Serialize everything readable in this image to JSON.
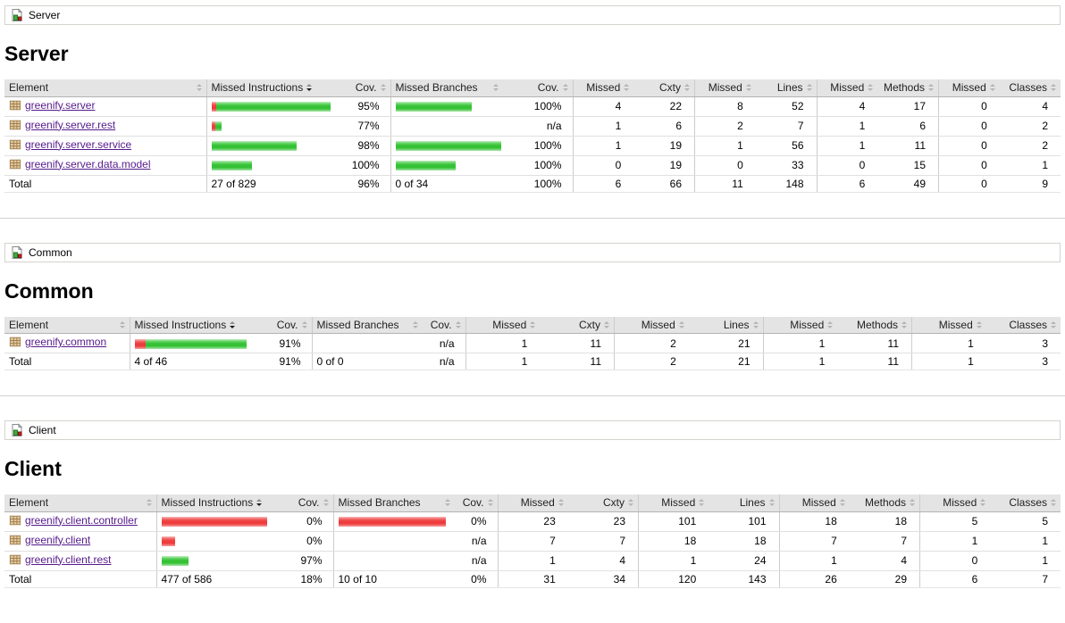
{
  "colors": {
    "bar_green": "#35c135",
    "bar_red": "#ee3c3c",
    "link_purple": "#551a8b",
    "header_bg": "#e4e4e4"
  },
  "icons": {
    "breadcrumb_icon": "coverage-report-icon",
    "package_icon": "java-package-icon",
    "sort_unsorted": "sort-toggle-icon",
    "sort_active": "sort-descending-icon"
  },
  "columns": [
    {
      "label": "Element",
      "sorted": false
    },
    {
      "label": "Missed Instructions",
      "sorted": true
    },
    {
      "label": "Cov.",
      "sorted": false
    },
    {
      "label": "Missed Branches",
      "sorted": false
    },
    {
      "label": "Cov.",
      "sorted": false
    },
    {
      "label": "Missed",
      "sorted": false
    },
    {
      "label": "Cxty",
      "sorted": false
    },
    {
      "label": "Missed",
      "sorted": false
    },
    {
      "label": "Lines",
      "sorted": false
    },
    {
      "label": "Missed",
      "sorted": false
    },
    {
      "label": "Methods",
      "sorted": false
    },
    {
      "label": "Missed",
      "sorted": false
    },
    {
      "label": "Classes",
      "sorted": false
    }
  ],
  "sections": [
    {
      "breadcrumb": "Server",
      "title": "Server",
      "rows": [
        {
          "element": "greenify.server",
          "instr_bar": {
            "red": 5,
            "green": 128
          },
          "instr_cov": "95%",
          "branch_bar": {
            "red": 0,
            "green": 85
          },
          "branch_cov": "100%",
          "cells": [
            "4",
            "22",
            "8",
            "52",
            "4",
            "17",
            "0",
            "4"
          ]
        },
        {
          "element": "greenify.server.rest",
          "instr_bar": {
            "red": 4,
            "green": 7
          },
          "instr_cov": "77%",
          "branch_bar": null,
          "branch_cov": "n/a",
          "cells": [
            "1",
            "6",
            "2",
            "7",
            "1",
            "6",
            "0",
            "2"
          ]
        },
        {
          "element": "greenify.server.service",
          "instr_bar": {
            "red": 0,
            "green": 95
          },
          "instr_cov": "98%",
          "branch_bar": {
            "red": 0,
            "green": 118
          },
          "branch_cov": "100%",
          "cells": [
            "1",
            "19",
            "1",
            "56",
            "1",
            "11",
            "0",
            "2"
          ]
        },
        {
          "element": "greenify.server.data.model",
          "instr_bar": {
            "red": 0,
            "green": 45
          },
          "instr_cov": "100%",
          "branch_bar": {
            "red": 0,
            "green": 67
          },
          "branch_cov": "100%",
          "cells": [
            "0",
            "19",
            "0",
            "33",
            "0",
            "15",
            "0",
            "1"
          ]
        }
      ],
      "total": {
        "label": "Total",
        "instr": "27 of 829",
        "instr_cov": "96%",
        "branch": "0 of 34",
        "branch_cov": "100%",
        "cells": [
          "6",
          "66",
          "11",
          "148",
          "6",
          "49",
          "0",
          "9"
        ]
      }
    },
    {
      "breadcrumb": "Common",
      "title": "Common",
      "rows": [
        {
          "element": "greenify.common",
          "instr_bar": {
            "red": 12,
            "green": 113
          },
          "instr_cov": "91%",
          "branch_bar": null,
          "branch_cov": "n/a",
          "cells": [
            "1",
            "11",
            "2",
            "21",
            "1",
            "11",
            "1",
            "3"
          ]
        }
      ],
      "total": {
        "label": "Total",
        "instr": "4 of 46",
        "instr_cov": "91%",
        "branch": "0 of 0",
        "branch_cov": "n/a",
        "cells": [
          "1",
          "11",
          "2",
          "21",
          "1",
          "11",
          "1",
          "3"
        ]
      }
    },
    {
      "breadcrumb": "Client",
      "title": "Client",
      "rows": [
        {
          "element": "greenify.client.controller",
          "instr_bar": {
            "red": 118,
            "green": 0
          },
          "instr_cov": "0%",
          "branch_bar": {
            "red": 120,
            "green": 0
          },
          "branch_cov": "0%",
          "cells": [
            "23",
            "23",
            "101",
            "101",
            "18",
            "18",
            "5",
            "5"
          ]
        },
        {
          "element": "greenify.client",
          "instr_bar": {
            "red": 15,
            "green": 0
          },
          "instr_cov": "0%",
          "branch_bar": null,
          "branch_cov": "n/a",
          "cells": [
            "7",
            "7",
            "18",
            "18",
            "7",
            "7",
            "1",
            "1"
          ]
        },
        {
          "element": "greenify.client.rest",
          "instr_bar": {
            "red": 0,
            "green": 30
          },
          "instr_cov": "97%",
          "branch_bar": null,
          "branch_cov": "n/a",
          "cells": [
            "1",
            "4",
            "1",
            "24",
            "1",
            "4",
            "0",
            "1"
          ]
        }
      ],
      "total": {
        "label": "Total",
        "instr": "477 of 586",
        "instr_cov": "18%",
        "branch": "10 of 10",
        "branch_cov": "0%",
        "cells": [
          "31",
          "34",
          "120",
          "143",
          "26",
          "29",
          "6",
          "7"
        ]
      }
    }
  ]
}
